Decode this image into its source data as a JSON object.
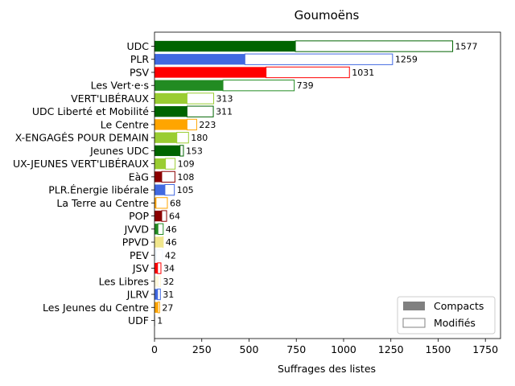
{
  "chart_data": {
    "type": "bar",
    "orientation": "horizontal",
    "stacked": true,
    "title": "Goumoëns",
    "xlabel": "Suffrages des listes",
    "ylabel": "",
    "xlim": [
      0,
      1830
    ],
    "xticks": [
      0,
      250,
      500,
      750,
      1000,
      1250,
      1500,
      1750
    ],
    "grid": false,
    "legend_position": "lower-right",
    "legend": [
      {
        "name": "Compacts",
        "style": "filled"
      },
      {
        "name": "Modifiés",
        "style": "outline"
      }
    ],
    "categories": [
      {
        "label": "UDC",
        "compacts": 745,
        "total": 1577,
        "color": "#006400"
      },
      {
        "label": "PLR",
        "compacts": 478,
        "total": 1259,
        "color": "#4169e1"
      },
      {
        "label": "PSV",
        "compacts": 590,
        "total": 1031,
        "color": "#ff0000"
      },
      {
        "label": "Les Vert·e·s",
        "compacts": 362,
        "total": 739,
        "color": "#228b22"
      },
      {
        "label": "VERT'LIBÉRAUX",
        "compacts": 172,
        "total": 313,
        "color": "#9acd32"
      },
      {
        "label": "UDC Liberté et Mobilité",
        "compacts": 172,
        "total": 311,
        "color": "#006400"
      },
      {
        "label": "Le Centre",
        "compacts": 172,
        "total": 223,
        "color": "#ffa500"
      },
      {
        "label": "X-ENGAGÉS POUR DEMAIN",
        "compacts": 118,
        "total": 180,
        "color": "#9acd32"
      },
      {
        "label": "Jeunes UDC",
        "compacts": 135,
        "total": 153,
        "color": "#006400"
      },
      {
        "label": "UX-JEUNES VERT'LIBÉRAUX",
        "compacts": 58,
        "total": 109,
        "color": "#9acd32"
      },
      {
        "label": "EàG",
        "compacts": 38,
        "total": 108,
        "color": "#8b0000"
      },
      {
        "label": "PLR.Énergie libérale",
        "compacts": 55,
        "total": 105,
        "color": "#4169e1"
      },
      {
        "label": "La Terre au Centre",
        "compacts": 8,
        "total": 68,
        "color": "#ffa500"
      },
      {
        "label": "POP",
        "compacts": 38,
        "total": 64,
        "color": "#8b0000"
      },
      {
        "label": "JVVD",
        "compacts": 18,
        "total": 46,
        "color": "#228b22"
      },
      {
        "label": "PPVD",
        "compacts": 44,
        "total": 46,
        "color": "#f0e68c"
      },
      {
        "label": "PEV",
        "compacts": 10,
        "total": 42,
        "color": "#f0f8ff"
      },
      {
        "label": "JSV",
        "compacts": 16,
        "total": 34,
        "color": "#ff0000"
      },
      {
        "label": "Les Libres",
        "compacts": 20,
        "total": 32,
        "color": "#fff8dc"
      },
      {
        "label": "JLRV",
        "compacts": 16,
        "total": 31,
        "color": "#4169e1"
      },
      {
        "label": "Les Jeunes du Centre",
        "compacts": 18,
        "total": 27,
        "color": "#ffa500"
      },
      {
        "label": "UDF",
        "compacts": 0,
        "total": 1,
        "color": "#cccccc"
      }
    ],
    "legend_colors": {
      "compacts": "#808080",
      "modifies_edge": "#808080"
    }
  }
}
